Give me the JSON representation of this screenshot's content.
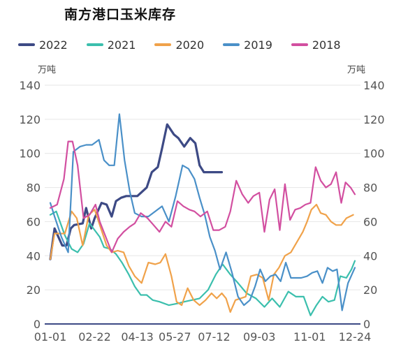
{
  "chart_data": {
    "type": "line",
    "title": "南方港口玉米库存",
    "ylabel_left": "万吨",
    "ylabel_right": "万吨",
    "ylim": [
      0,
      140
    ],
    "yticks": [
      0,
      20,
      40,
      60,
      80,
      100,
      120,
      140
    ],
    "x_range_days": [
      1,
      358
    ],
    "xtick_labels": [
      "01-01",
      "02-22",
      "04-13",
      "05-27",
      "07-12",
      "09-03",
      "11-01",
      "12-24"
    ],
    "xtick_days": [
      1,
      53,
      103,
      147,
      193,
      246,
      305,
      358
    ],
    "grid": true,
    "legend_position": "top-left",
    "series": [
      {
        "name": "2022",
        "color": "#3d4a85",
        "x": [
          1,
          6,
          15,
          20,
          25,
          29,
          39,
          43,
          49,
          53,
          61,
          67,
          73,
          78,
          84,
          90,
          97,
          103,
          114,
          120,
          127,
          132,
          138,
          146,
          151,
          158,
          165,
          171,
          176,
          181,
          186,
          191,
          197,
          202
        ],
        "y": [
          38,
          56,
          46,
          46,
          56,
          58,
          59,
          68,
          56,
          62,
          71,
          70,
          63,
          72,
          74,
          75,
          75,
          75,
          80,
          89,
          92,
          103,
          117,
          111,
          109,
          104,
          109,
          106,
          93,
          89,
          89,
          89,
          89,
          89
        ]
      },
      {
        "name": "2021",
        "color": "#3bbfad",
        "x": [
          1,
          8,
          18,
          26,
          33,
          40,
          47,
          53,
          59,
          64,
          71,
          78,
          85,
          93,
          100,
          107,
          114,
          121,
          129,
          140,
          150,
          158,
          167,
          176,
          186,
          195,
          203,
          212,
          221,
          231,
          242,
          252,
          261,
          270,
          280,
          289,
          298,
          306,
          313,
          320,
          327,
          334,
          341,
          348,
          354,
          358
        ],
        "y": [
          64,
          66,
          52,
          44,
          42,
          47,
          59,
          55,
          51,
          45,
          44,
          41,
          36,
          29,
          22,
          17,
          17,
          14,
          13,
          11,
          12,
          13,
          14,
          15,
          20,
          29,
          35,
          29,
          24,
          18,
          15,
          10,
          15,
          10,
          19,
          16,
          16,
          5,
          11,
          16,
          13,
          14,
          28,
          27,
          32,
          37
        ]
      },
      {
        "name": "2020",
        "color": "#f0a24a",
        "x": [
          1,
          6,
          12,
          18,
          26,
          32,
          39,
          46,
          53,
          61,
          67,
          73,
          80,
          87,
          93,
          100,
          108,
          116,
          124,
          130,
          136,
          143,
          149,
          155,
          162,
          169,
          176,
          183,
          190,
          196,
          202,
          207,
          212,
          218,
          224,
          230,
          236,
          243,
          250,
          257,
          263,
          269,
          276,
          283,
          290,
          297,
          302,
          307,
          313,
          318,
          324,
          330,
          336,
          342,
          348,
          356
        ],
        "y": [
          38,
          53,
          53,
          53,
          66,
          62,
          46,
          64,
          67,
          55,
          46,
          42,
          43,
          42,
          34,
          28,
          24,
          36,
          35,
          36,
          41,
          28,
          13,
          11,
          21,
          14,
          11,
          14,
          18,
          15,
          18,
          15,
          7,
          14,
          15,
          16,
          28,
          29,
          27,
          14,
          29,
          33,
          40,
          42,
          48,
          54,
          60,
          67,
          70,
          65,
          64,
          60,
          58,
          58,
          62,
          64
        ]
      },
      {
        "name": "2019",
        "color": "#4a90c8",
        "x": [
          1,
          6,
          14,
          22,
          28,
          36,
          43,
          50,
          58,
          64,
          70,
          76,
          82,
          88,
          94,
          100,
          108,
          116,
          124,
          132,
          140,
          148,
          156,
          163,
          170,
          176,
          182,
          188,
          194,
          200,
          207,
          214,
          221,
          228,
          235,
          241,
          247,
          253,
          259,
          265,
          271,
          277,
          283,
          289,
          295,
          302,
          308,
          314,
          320,
          326,
          332,
          337,
          343,
          350,
          358
        ],
        "y": [
          71,
          63,
          51,
          42,
          101,
          104,
          105,
          105,
          108,
          96,
          93,
          93,
          123,
          96,
          78,
          65,
          63,
          63,
          66,
          69,
          60,
          75,
          93,
          91,
          85,
          74,
          64,
          51,
          43,
          32,
          42,
          30,
          16,
          11,
          14,
          22,
          32,
          25,
          28,
          29,
          25,
          36,
          27,
          27,
          27,
          28,
          30,
          31,
          24,
          33,
          31,
          32,
          8,
          24,
          33
        ]
      },
      {
        "name": "2018",
        "color": "#d24fa0",
        "x": [
          1,
          9,
          17,
          22,
          27,
          33,
          40,
          47,
          54,
          59,
          66,
          73,
          80,
          87,
          94,
          100,
          107,
          115,
          122,
          129,
          136,
          143,
          150,
          157,
          164,
          170,
          177,
          185,
          192,
          199,
          206,
          212,
          219,
          226,
          233,
          239,
          246,
          252,
          258,
          264,
          270,
          276,
          282,
          288,
          294,
          300,
          306,
          312,
          318,
          324,
          330,
          336,
          342,
          347,
          353,
          358
        ],
        "y": [
          68,
          70,
          85,
          107,
          107,
          93,
          62,
          64,
          70,
          60,
          51,
          42,
          50,
          54,
          57,
          59,
          65,
          62,
          58,
          54,
          60,
          57,
          72,
          69,
          67,
          66,
          63,
          66,
          55,
          55,
          57,
          66,
          84,
          76,
          71,
          75,
          77,
          54,
          73,
          79,
          55,
          82,
          61,
          67,
          68,
          70,
          71,
          92,
          84,
          80,
          82,
          89,
          71,
          83,
          80,
          76
        ]
      }
    ]
  }
}
